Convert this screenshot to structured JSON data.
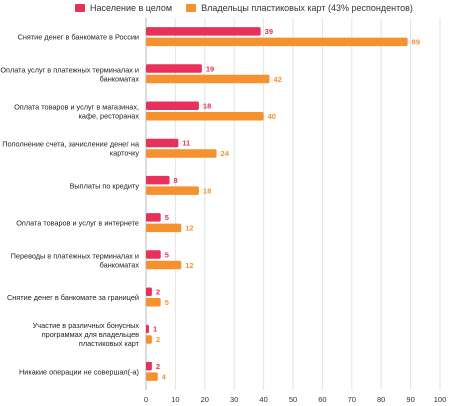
{
  "chart_data": {
    "type": "bar",
    "orientation": "horizontal",
    "xlim": [
      0,
      100
    ],
    "ticks": [
      "0",
      "10",
      "20",
      "30",
      "40",
      "50",
      "60",
      "70",
      "80",
      "90",
      "100"
    ],
    "categories": [
      [
        "Снятие денег в банкомате в России"
      ],
      [
        "Оплата услуг в платежных терминалах и",
        "банкоматах"
      ],
      [
        "Оплата товаров и услуг в магазинах,",
        "кафе, ресторанах"
      ],
      [
        "Пополнение счета, зачисление денег на",
        "карточку"
      ],
      [
        "Выплаты по кредиту"
      ],
      [
        "Оплата товаров и услуг в интернете"
      ],
      [
        "Переводы в платежных терминалах и",
        "банкоматах"
      ],
      [
        "Снятие денег в банкомате за границей"
      ],
      [
        "Участие в различных бонусных",
        "программах для владельцев",
        "пластиковых карт"
      ],
      [
        "Никакие операции не совершал(-а)"
      ]
    ],
    "series": [
      {
        "name": "Население в целом",
        "color": "#e8305a",
        "values": [
          39,
          19,
          18,
          11,
          8,
          5,
          5,
          2,
          1,
          2
        ]
      },
      {
        "name": "Владельцы пластиковых карт (43% респондентов)",
        "color": "#f5922f",
        "values": [
          89,
          42,
          40,
          24,
          18,
          12,
          12,
          5,
          2,
          4
        ]
      }
    ],
    "grid": true,
    "legend_position": "top"
  }
}
